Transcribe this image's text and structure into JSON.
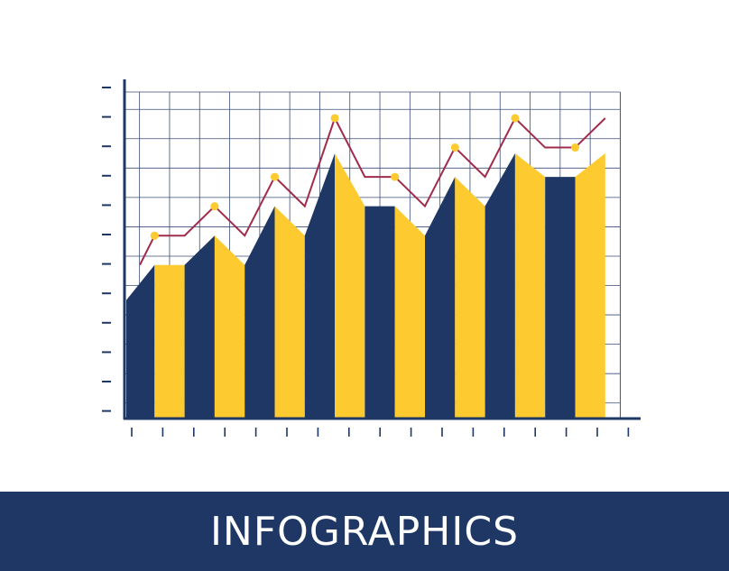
{
  "chart_data": {
    "type": "area",
    "tick_labels_visible": false,
    "y_range": [
      0,
      11
    ],
    "y_tick_count": 11,
    "x_tick_count": 17,
    "grid": true,
    "bar_area_series": {
      "x": [
        0,
        1,
        2,
        3,
        4,
        5,
        6,
        7,
        8,
        9,
        10,
        11,
        12,
        13,
        14,
        15,
        16
      ],
      "values": [
        4.0,
        5.2,
        5.2,
        6.2,
        5.2,
        7.2,
        6.2,
        9.0,
        7.2,
        7.2,
        6.2,
        8.2,
        7.2,
        9.0,
        8.2,
        8.2,
        9.0
      ]
    },
    "line_series": {
      "x": [
        0.5,
        1.5,
        2.5,
        3.5,
        4.5,
        5.5,
        6.5,
        7.5,
        8.5,
        9.5,
        10.5,
        11.5,
        12.5,
        13.5,
        14.5,
        15.5,
        16.5
      ],
      "values": [
        5.2,
        6.2,
        6.2,
        7.2,
        6.2,
        8.2,
        7.2,
        10.2,
        8.2,
        8.2,
        7.2,
        9.2,
        8.2,
        10.2,
        9.2,
        9.2,
        10.2
      ],
      "marker_indices": [
        1,
        3,
        5,
        7,
        9,
        11,
        13,
        15
      ]
    }
  },
  "colors": {
    "navy": "#1e3764",
    "yellow": "#fdca2f",
    "line": "#a12b4b",
    "marker": "#fdca2f",
    "grid": "#3c4d7a",
    "banner": "#1e3764"
  },
  "banner": {
    "title": "INFOGRAPHICS"
  }
}
